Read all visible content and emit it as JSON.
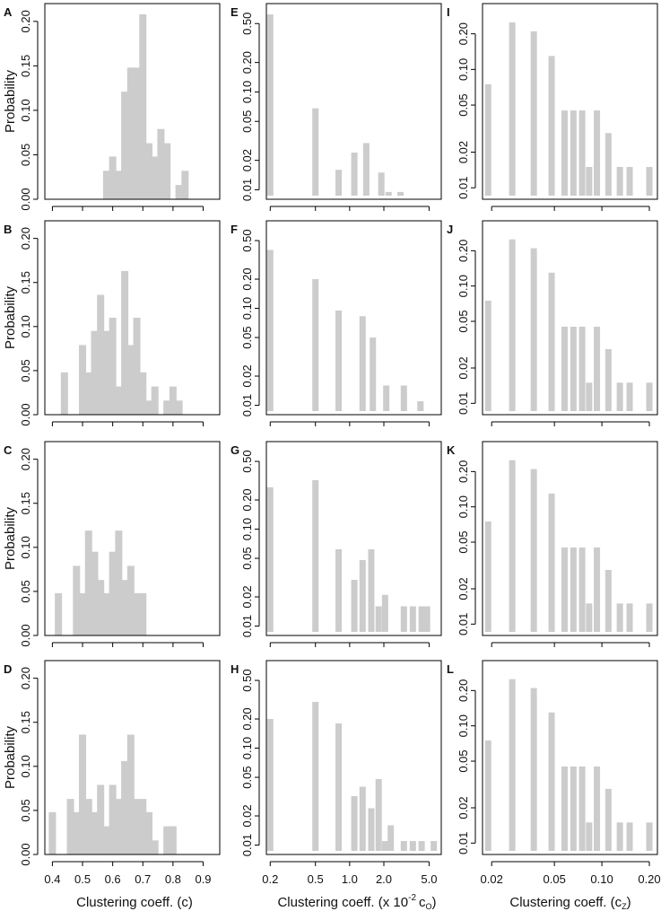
{
  "colors": {
    "bar": "#cccccc",
    "axis": "#000000"
  },
  "labels": {
    "ylabel_left": "Probability",
    "xlabel_left": "Clustering coeff. (c)",
    "xlabel_mid": "Clustering coeff. (x 10",
    "xlabel_mid_exp": "-2",
    "xlabel_mid_tail": "c",
    "xlabel_mid_sub": "O",
    "xlabel_mid_end": ")",
    "xlabel_right": "Clustering coeff. (c",
    "xlabel_right_sub": "Z",
    "xlabel_right_end": ")"
  },
  "chart_data": [
    {
      "panel": "A",
      "type": "bar",
      "ylabel": "Probability",
      "ylim": [
        0,
        0.22
      ],
      "yticks": [
        "0.00",
        "0.05",
        "0.10",
        "0.15",
        "0.20"
      ],
      "ytick_values": [
        0,
        0.05,
        0.1,
        0.15,
        0.2
      ],
      "xlim": [
        0.375,
        0.955
      ],
      "xticks": [
        0.4,
        0.5,
        0.6,
        0.7,
        0.8,
        0.9
      ],
      "x": [
        0.56,
        0.58,
        0.6,
        0.62,
        0.64,
        0.66,
        0.68,
        0.7,
        0.72,
        0.74,
        0.76,
        0.78,
        0.8,
        0.82,
        0.84,
        0.86,
        0.88,
        0.9,
        0.92,
        0.94
      ],
      "values": [
        0,
        0.032,
        0.048,
        0.032,
        0.121,
        0.148,
        0.148,
        0.208,
        0.063,
        0.048,
        0.079,
        0.063,
        0,
        0.016,
        0.032,
        0,
        0,
        0,
        0,
        0
      ]
    },
    {
      "panel": "B",
      "type": "bar",
      "ylabel": "Probability",
      "ylim": [
        0,
        0.22
      ],
      "yticks": [
        "0.00",
        "0.05",
        "0.10",
        "0.15",
        "0.20"
      ],
      "ytick_values": [
        0,
        0.05,
        0.1,
        0.15,
        0.2
      ],
      "xlim": [
        0.375,
        0.955
      ],
      "xticks": [
        0.4,
        0.5,
        0.6,
        0.7,
        0.8,
        0.9
      ],
      "x": [
        0.44,
        0.48,
        0.5,
        0.52,
        0.54,
        0.56,
        0.58,
        0.6,
        0.62,
        0.64,
        0.66,
        0.68,
        0.7,
        0.72,
        0.74,
        0.76,
        0.78,
        0.8,
        0.82,
        0.84,
        0.86
      ],
      "values": [
        0.048,
        0,
        0.079,
        0.048,
        0.095,
        0.136,
        0.095,
        0.11,
        0.032,
        0.163,
        0.079,
        0.11,
        0.048,
        0.016,
        0.032,
        0,
        0.016,
        0.032,
        0.016,
        0,
        0
      ]
    },
    {
      "panel": "C",
      "type": "bar",
      "ylabel": "Probability",
      "ylim": [
        0,
        0.22
      ],
      "yticks": [
        "0.00",
        "0.05",
        "0.10",
        "0.15",
        "0.20"
      ],
      "ytick_values": [
        0,
        0.05,
        0.1,
        0.15,
        0.2
      ],
      "xlim": [
        0.375,
        0.955
      ],
      "xticks": [
        0.4,
        0.5,
        0.6,
        0.7,
        0.8,
        0.9
      ],
      "x": [
        0.42,
        0.46,
        0.48,
        0.5,
        0.52,
        0.54,
        0.56,
        0.58,
        0.6,
        0.62,
        0.64,
        0.66,
        0.68,
        0.7,
        0.72,
        0.74,
        0.76,
        0.78,
        0.8,
        0.82
      ],
      "values": [
        0.048,
        0,
        0.079,
        0.048,
        0.119,
        0.095,
        0.063,
        0.048,
        0.095,
        0.119,
        0.063,
        0.079,
        0.048,
        0.048,
        0,
        0,
        0,
        0,
        0,
        0
      ]
    },
    {
      "panel": "D",
      "type": "bar",
      "ylabel": "Probability",
      "ylim": [
        0,
        0.22
      ],
      "yticks": [
        "0.00",
        "0.05",
        "0.10",
        "0.15",
        "0.20"
      ],
      "ytick_values": [
        0,
        0.05,
        0.1,
        0.15,
        0.2
      ],
      "xlim": [
        0.375,
        0.955
      ],
      "xticks": [
        0.4,
        0.5,
        0.6,
        0.7,
        0.8,
        0.9
      ],
      "x": [
        0.4,
        0.44,
        0.46,
        0.48,
        0.5,
        0.52,
        0.54,
        0.56,
        0.58,
        0.6,
        0.62,
        0.64,
        0.66,
        0.68,
        0.7,
        0.72,
        0.74,
        0.76,
        0.78,
        0.8
      ],
      "values": [
        0.048,
        0,
        0.063,
        0.048,
        0.136,
        0.063,
        0.048,
        0.079,
        0.032,
        0.079,
        0.063,
        0.106,
        0.136,
        0.063,
        0.063,
        0.048,
        0.016,
        0,
        0.032,
        0.032
      ]
    },
    {
      "panel": "E",
      "type": "bar",
      "yscale": "log",
      "ylim": [
        0.008,
        0.8
      ],
      "yticks": [
        "0.01",
        "0.02",
        "0.05",
        "0.10",
        "0.20",
        "0.50"
      ],
      "ytick_values": [
        0.01,
        0.02,
        0.05,
        0.1,
        0.2,
        0.5
      ],
      "xscale": "log",
      "xlim": [
        0.185,
        6.4
      ],
      "xticks": [
        "0.2",
        "0.5",
        "1.0",
        "2.0",
        "5.0"
      ],
      "xtick_values": [
        0.2,
        0.5,
        1,
        2,
        5
      ],
      "x": [
        0.2,
        0.5,
        0.8,
        1.1,
        1.4,
        1.9,
        2.2,
        2.8
      ],
      "values": [
        0.62,
        0.068,
        0.016,
        0.024,
        0.03,
        0.015,
        0.0095,
        0.0095
      ]
    },
    {
      "panel": "F",
      "type": "bar",
      "yscale": "log",
      "ylim": [
        0.008,
        0.8
      ],
      "yticks": [
        "0.01",
        "0.02",
        "0.05",
        "0.10",
        "0.20",
        "0.50"
      ],
      "ytick_values": [
        0.01,
        0.02,
        0.05,
        0.1,
        0.2,
        0.5
      ],
      "xscale": "log",
      "xlim": [
        0.185,
        6.4
      ],
      "xticks": [
        "0.2",
        "0.5",
        "1.0",
        "2.0",
        "5.0"
      ],
      "xtick_values": [
        0.2,
        0.5,
        1,
        2,
        5
      ],
      "x": [
        0.2,
        0.5,
        0.8,
        1.3,
        1.6,
        2.1,
        3.0,
        4.2
      ],
      "values": [
        0.4,
        0.2,
        0.095,
        0.083,
        0.05,
        0.016,
        0.016,
        0.011
      ]
    },
    {
      "panel": "G",
      "type": "bar",
      "yscale": "log",
      "ylim": [
        0.008,
        0.8
      ],
      "yticks": [
        "0.01",
        "0.02",
        "0.05",
        "0.10",
        "0.20",
        "0.50"
      ],
      "ytick_values": [
        0.01,
        0.02,
        0.05,
        0.1,
        0.2,
        0.5
      ],
      "xscale": "log",
      "xlim": [
        0.185,
        6.4
      ],
      "xticks": [
        "0.2",
        "0.5",
        "1.0",
        "2.0",
        "5.0"
      ],
      "xtick_values": [
        0.2,
        0.5,
        1,
        2,
        5
      ],
      "x": [
        0.2,
        0.5,
        0.8,
        1.1,
        1.3,
        1.55,
        1.8,
        2.05,
        3.0,
        3.6,
        4.3,
        4.8
      ],
      "values": [
        0.27,
        0.32,
        0.062,
        0.03,
        0.048,
        0.062,
        0.016,
        0.021,
        0.016,
        0.016,
        0.016,
        0.016
      ]
    },
    {
      "panel": "H",
      "type": "bar",
      "yscale": "log",
      "ylim": [
        0.008,
        0.8
      ],
      "yticks": [
        "0.01",
        "0.02",
        "0.05",
        "0.10",
        "0.20",
        "0.50"
      ],
      "ytick_values": [
        0.01,
        0.02,
        0.05,
        0.1,
        0.2,
        0.5
      ],
      "xscale": "log",
      "xlim": [
        0.185,
        6.4
      ],
      "xticks": [
        "0.2",
        "0.5",
        "1.0",
        "2.0",
        "5.0"
      ],
      "xtick_values": [
        0.2,
        0.5,
        1,
        2,
        5
      ],
      "x": [
        0.2,
        0.5,
        0.8,
        1.1,
        1.3,
        1.55,
        1.8,
        2.05,
        2.3,
        3.0,
        3.6,
        4.3,
        5.5
      ],
      "values": [
        0.2,
        0.3,
        0.18,
        0.032,
        0.04,
        0.024,
        0.048,
        0.011,
        0.016,
        0.011,
        0.011,
        0.011,
        0.011
      ]
    },
    {
      "panel": "I",
      "type": "bar",
      "yscale": "log",
      "ylim": [
        0.008,
        0.36
      ],
      "yticks": [
        "0.01",
        "0.02",
        "0.05",
        "0.10",
        "0.20"
      ],
      "ytick_values": [
        0.01,
        0.02,
        0.05,
        0.1,
        0.2
      ],
      "xscale": "log",
      "xlim": [
        0.0175,
        0.225
      ],
      "xticks": [
        "0.02",
        "0.05",
        "0.10",
        "0.20"
      ],
      "xtick_values": [
        0.02,
        0.05,
        0.1,
        0.2
      ],
      "x": [
        0.019,
        0.027,
        0.037,
        0.048,
        0.058,
        0.066,
        0.075,
        0.083,
        0.093,
        0.11,
        0.13,
        0.15,
        0.2
      ],
      "values": [
        0.075,
        0.25,
        0.21,
        0.13,
        0.045,
        0.045,
        0.045,
        0.015,
        0.045,
        0.029,
        0.015,
        0.015,
        0.015
      ]
    },
    {
      "panel": "J",
      "type": "bar",
      "yscale": "log",
      "ylim": [
        0.008,
        0.36
      ],
      "yticks": [
        "0.01",
        "0.02",
        "0.05",
        "0.10",
        "0.20"
      ],
      "ytick_values": [
        0.01,
        0.02,
        0.05,
        0.1,
        0.2
      ],
      "xscale": "log",
      "xlim": [
        0.0175,
        0.225
      ],
      "xticks": [
        "0.02",
        "0.05",
        "0.10",
        "0.20"
      ],
      "xtick_values": [
        0.02,
        0.05,
        0.1,
        0.2
      ],
      "x": [
        0.019,
        0.027,
        0.037,
        0.048,
        0.058,
        0.066,
        0.075,
        0.083,
        0.093,
        0.11,
        0.13,
        0.15,
        0.2
      ],
      "values": [
        0.075,
        0.25,
        0.21,
        0.13,
        0.045,
        0.045,
        0.045,
        0.015,
        0.045,
        0.029,
        0.015,
        0.015,
        0.015
      ]
    },
    {
      "panel": "K",
      "type": "bar",
      "yscale": "log",
      "ylim": [
        0.008,
        0.36
      ],
      "yticks": [
        "0.01",
        "0.02",
        "0.05",
        "0.10",
        "0.20"
      ],
      "ytick_values": [
        0.01,
        0.02,
        0.05,
        0.1,
        0.2
      ],
      "xscale": "log",
      "xlim": [
        0.0175,
        0.225
      ],
      "xticks": [
        "0.02",
        "0.05",
        "0.10",
        "0.20"
      ],
      "xtick_values": [
        0.02,
        0.05,
        0.1,
        0.2
      ],
      "x": [
        0.019,
        0.027,
        0.037,
        0.048,
        0.058,
        0.066,
        0.075,
        0.083,
        0.093,
        0.11,
        0.13,
        0.15,
        0.2
      ],
      "values": [
        0.075,
        0.25,
        0.21,
        0.13,
        0.045,
        0.045,
        0.045,
        0.015,
        0.045,
        0.029,
        0.015,
        0.015,
        0.015
      ]
    },
    {
      "panel": "L",
      "type": "bar",
      "yscale": "log",
      "ylim": [
        0.008,
        0.36
      ],
      "yticks": [
        "0.01",
        "0.02",
        "0.05",
        "0.10",
        "0.20"
      ],
      "ytick_values": [
        0.01,
        0.02,
        0.05,
        0.1,
        0.2
      ],
      "xscale": "log",
      "xlim": [
        0.0175,
        0.225
      ],
      "xticks": [
        "0.02",
        "0.05",
        "0.10",
        "0.20"
      ],
      "xtick_values": [
        0.02,
        0.05,
        0.1,
        0.2
      ],
      "x": [
        0.019,
        0.027,
        0.037,
        0.048,
        0.058,
        0.066,
        0.075,
        0.083,
        0.093,
        0.11,
        0.13,
        0.15,
        0.2
      ],
      "values": [
        0.075,
        0.25,
        0.21,
        0.13,
        0.045,
        0.045,
        0.045,
        0.015,
        0.045,
        0.029,
        0.015,
        0.015,
        0.015
      ]
    }
  ]
}
